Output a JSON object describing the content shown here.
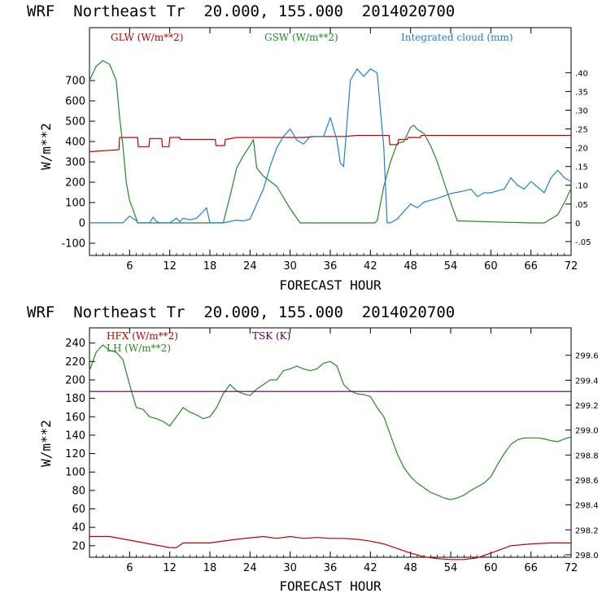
{
  "chart_data": [
    {
      "type": "line",
      "title": "WRF  Northeast Tr  20.000, 155.000  2014020700",
      "xlabel": "FORECAST HOUR",
      "ylabel": "W/m**2",
      "xlim": [
        0,
        72
      ],
      "ylim": [
        -160,
        960
      ],
      "y2lim": [
        -0.087,
        0.52
      ],
      "x_ticks": [
        "6",
        "12",
        "18",
        "24",
        "30",
        "36",
        "42",
        "48",
        "54",
        "60",
        "66",
        "72"
      ],
      "y_ticks": [
        "-100",
        "0",
        "100",
        "200",
        "300",
        "400",
        "500",
        "600",
        "700"
      ],
      "y2_ticks": [
        "-.05",
        "0",
        ".05",
        ".10",
        ".15",
        ".20",
        ".25",
        ".30",
        ".35",
        ".40"
      ],
      "grid": false,
      "series": [
        {
          "name": "GLW (W/m**2)",
          "color": "#c00000",
          "axis": "left",
          "x": [
            0,
            4.4,
            4.5,
            7.2,
            7.3,
            8.9,
            9.0,
            10.8,
            10.9,
            11.9,
            12.0,
            13.5,
            13.6,
            18.8,
            18.9,
            20.2,
            20.3,
            22,
            24,
            26,
            28,
            30,
            32,
            34,
            36,
            38,
            40,
            42,
            44.8,
            44.9,
            46.1,
            46.2,
            47.5,
            47.6,
            49.5,
            49.6,
            60,
            72
          ],
          "y": [
            350,
            360,
            420,
            420,
            375,
            375,
            415,
            415,
            375,
            375,
            420,
            420,
            410,
            410,
            380,
            380,
            410,
            420,
            420,
            420,
            420,
            420,
            420,
            425,
            425,
            425,
            430,
            430,
            430,
            385,
            385,
            410,
            410,
            420,
            420,
            430,
            430,
            430
          ]
        },
        {
          "name": "GSW (W/m**2)",
          "color": "#228b22",
          "axis": "left",
          "x": [
            0,
            1,
            2,
            3,
            4,
            4.5,
            5,
            5.5,
            6,
            7,
            7.2,
            20,
            21,
            22,
            23,
            24,
            24.5,
            25,
            26,
            28,
            30,
            31.5,
            42.6,
            43,
            44,
            45,
            46,
            47,
            48,
            48.5,
            49,
            50,
            51,
            52,
            53,
            54,
            55,
            66,
            68,
            70,
            71,
            72
          ],
          "y": [
            700,
            770,
            798,
            780,
            700,
            520,
            380,
            200,
            110,
            20,
            0,
            0,
            130,
            270,
            330,
            380,
            410,
            270,
            230,
            180,
            70,
            0,
            0,
            10,
            180,
            300,
            390,
            400,
            470,
            480,
            460,
            440,
            380,
            300,
            200,
            100,
            10,
            0,
            0,
            40,
            100,
            170
          ]
        },
        {
          "name": "Integrated cloud (mm)",
          "color": "#1e7fd8",
          "axis": "right",
          "x": [
            0,
            5,
            6,
            7,
            7.2,
            9,
            9.5,
            10,
            10.5,
            12,
            13,
            13.5,
            14,
            15,
            16,
            17,
            17.5,
            18,
            19,
            20,
            22,
            23,
            24,
            25,
            26,
            27,
            28,
            29,
            30,
            31,
            32,
            33,
            34,
            35,
            36,
            37,
            37.5,
            38,
            39,
            40,
            41,
            42,
            43,
            44,
            44.5,
            45,
            46,
            47,
            48,
            49,
            50,
            52,
            54,
            56,
            57,
            58,
            59,
            60,
            61,
            62,
            63,
            64,
            65,
            66,
            67,
            68,
            69,
            70,
            71,
            72
          ],
          "y": [
            0,
            0,
            0.018,
            0.006,
            0,
            0,
            0.015,
            0.004,
            0,
            0,
            0.012,
            0.003,
            0.012,
            0.008,
            0.012,
            0.03,
            0.04,
            0,
            0,
            0,
            0.007,
            0.005,
            0.01,
            0.05,
            0.09,
            0.15,
            0.2,
            0.23,
            0.25,
            0.22,
            0.21,
            0.23,
            0.23,
            0.23,
            0.28,
            0.22,
            0.16,
            0.15,
            0.38,
            0.41,
            0.39,
            0.41,
            0.4,
            0.2,
            0,
            0,
            0.01,
            0.03,
            0.05,
            0.04,
            0.055,
            0.065,
            0.078,
            0.085,
            0.09,
            0.07,
            0.08,
            0.08,
            0.085,
            0.09,
            0.12,
            0.1,
            0.09,
            0.11,
            0.095,
            0.08,
            0.12,
            0.14,
            0.12,
            0.11
          ]
        }
      ],
      "legend_placement": "top"
    },
    {
      "type": "line",
      "title": "WRF  Northeast Tr  20.000, 155.000  2014020700",
      "xlabel": "FORECAST HOUR",
      "ylabel": "W/m**2",
      "xlim": [
        0,
        72
      ],
      "ylim": [
        7.5,
        256.5
      ],
      "y2lim": [
        297.98,
        299.82
      ],
      "x_ticks": [
        "6",
        "12",
        "18",
        "24",
        "30",
        "36",
        "42",
        "48",
        "54",
        "60",
        "66",
        "72"
      ],
      "y_ticks": [
        "20",
        "40",
        "60",
        "80",
        "100",
        "120",
        "140",
        "160",
        "180",
        "200",
        "220",
        "240"
      ],
      "y2_ticks": [
        "298.0",
        "298.2",
        "298.4",
        "298.6",
        "298.8",
        "299.0",
        "299.2",
        "299.4",
        "299.6"
      ],
      "grid": false,
      "series": [
        {
          "name": "HFX (W/m**2)",
          "color": "#c00000",
          "axis": "left",
          "x": [
            0,
            3,
            6,
            9,
            12,
            13,
            14,
            18,
            22,
            26,
            28,
            30,
            32,
            34,
            36,
            38,
            40,
            42,
            44,
            48,
            50,
            52,
            54,
            56,
            58,
            60,
            63,
            66,
            69,
            72
          ],
          "y": [
            30,
            30,
            26,
            22,
            18,
            18,
            23,
            23,
            27,
            30,
            28,
            30,
            28,
            29,
            28,
            28,
            27,
            25,
            22,
            12,
            8,
            6,
            5,
            5,
            7,
            12,
            20,
            22,
            23,
            23
          ]
        },
        {
          "name": "LH (W/m**2)",
          "color": "#228b22",
          "axis": "left",
          "x": [
            0,
            1,
            2,
            3,
            4,
            5,
            6,
            7,
            8,
            9,
            10,
            11,
            12,
            13,
            14,
            15,
            16,
            17,
            18,
            19,
            20,
            21,
            22,
            23,
            24,
            25,
            26,
            27,
            28,
            29,
            30,
            31,
            32,
            33,
            34,
            35,
            36,
            37,
            38,
            39,
            40,
            41,
            42,
            43,
            44,
            45,
            46,
            47,
            48,
            49,
            50,
            51,
            52,
            53,
            54,
            55,
            56,
            57,
            58,
            59,
            60,
            61,
            62,
            63,
            64,
            65,
            66,
            67,
            68,
            69,
            70,
            71,
            72
          ],
          "y": [
            210,
            230,
            238,
            232,
            230,
            222,
            195,
            170,
            168,
            160,
            158,
            155,
            150,
            160,
            170,
            165,
            162,
            158,
            160,
            170,
            185,
            195,
            188,
            185,
            183,
            190,
            195,
            200,
            200,
            210,
            212,
            215,
            212,
            210,
            212,
            218,
            220,
            215,
            195,
            188,
            185,
            184,
            182,
            170,
            160,
            140,
            120,
            105,
            95,
            88,
            83,
            78,
            75,
            72,
            70,
            72,
            75,
            80,
            84,
            88,
            95,
            108,
            120,
            130,
            135,
            137,
            137,
            137,
            136,
            134,
            133,
            136,
            138
          ]
        },
        {
          "name": "TSK (K)",
          "color": "#500050",
          "axis": "right",
          "x": [
            0,
            72
          ],
          "y": [
            299.31,
            299.31
          ]
        }
      ],
      "legend_placement": "top"
    }
  ]
}
